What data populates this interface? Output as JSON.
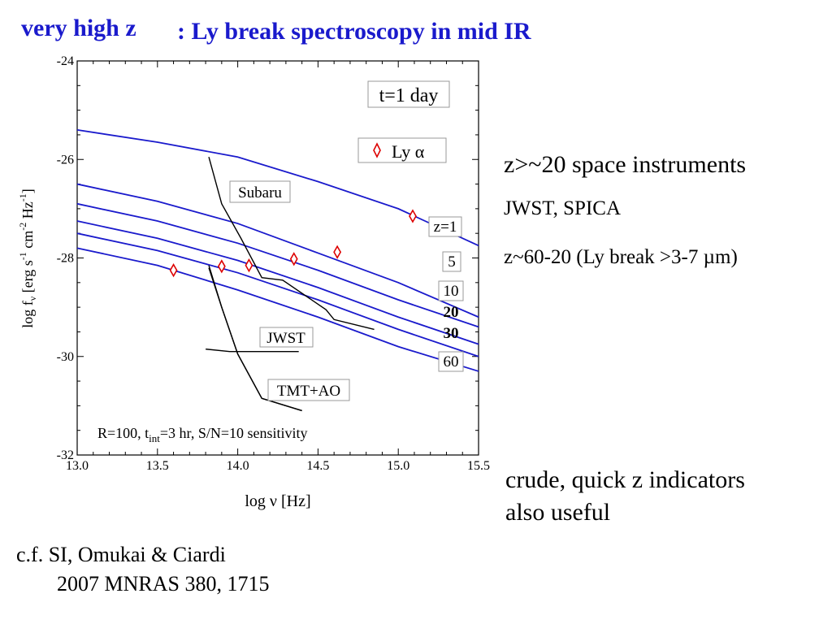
{
  "slide": {
    "title_part1": "very high z",
    "title_part2": ": Ly break spectroscopy in mid IR",
    "bullet1": "z>~20 space instruments",
    "bullet2": "JWST, SPICA",
    "bullet3": "z~60-20 (Ly break >3-7 µm)",
    "note_line1": "crude, quick z indicators",
    "note_line2": "also useful",
    "ref_line1": "c.f. SI, Omukai & Ciardi",
    "ref_line2": "2007 MNRAS 380, 1715",
    "colors": {
      "title": "#1a1acc",
      "curves": "#1a1acc",
      "marker": "#dd0000"
    }
  },
  "chart_data": {
    "type": "line",
    "xlabel": "log ν [Hz]",
    "ylabel": "log fν [erg s⁻¹ cm⁻² Hz⁻¹]",
    "xlim": [
      13.0,
      15.5
    ],
    "ylim": [
      -32,
      -24
    ],
    "x_ticks": [
      "13.0",
      "13.5",
      "14.0",
      "14.5",
      "15.0",
      "15.5"
    ],
    "y_ticks": [
      "-24",
      "-26",
      "-28",
      "-30",
      "-32"
    ],
    "time_label": "t=1 day",
    "legend": {
      "label": "Ly α",
      "position": "top-right"
    },
    "footnote": "R=100, tint=3 hr, S/N=10 sensitivity",
    "series": [
      {
        "name": "z=1",
        "x": [
          13.0,
          13.5,
          14.0,
          14.5,
          15.0,
          15.5
        ],
        "y": [
          -25.4,
          -25.65,
          -25.95,
          -26.45,
          -27.0,
          -27.75
        ],
        "lyalpha": [
          15.09,
          -27.15
        ]
      },
      {
        "name": "5",
        "x": [
          13.0,
          13.5,
          14.0,
          14.5,
          15.0,
          15.5
        ],
        "y": [
          -26.5,
          -26.85,
          -27.3,
          -27.9,
          -28.5,
          -29.2
        ],
        "lyalpha": [
          14.62,
          -27.88
        ]
      },
      {
        "name": "10",
        "x": [
          13.0,
          13.5,
          14.0,
          14.5,
          15.0,
          15.5
        ],
        "y": [
          -26.9,
          -27.25,
          -27.7,
          -28.25,
          -28.85,
          -29.4
        ],
        "lyalpha": [
          14.35,
          -28.02
        ]
      },
      {
        "name": "20",
        "x": [
          13.0,
          13.5,
          14.0,
          14.5,
          15.0,
          15.5
        ],
        "y": [
          -27.25,
          -27.6,
          -28.05,
          -28.6,
          -29.2,
          -29.75
        ],
        "lyalpha": [
          14.07,
          -28.15
        ]
      },
      {
        "name": "30",
        "x": [
          13.0,
          13.5,
          14.0,
          14.5,
          15.0,
          15.5
        ],
        "y": [
          -27.5,
          -27.85,
          -28.3,
          -28.85,
          -29.45,
          -30.0
        ],
        "lyalpha": [
          13.9,
          -28.17
        ]
      },
      {
        "name": "60",
        "x": [
          13.0,
          13.5,
          14.0,
          14.5,
          15.0,
          15.5
        ],
        "y": [
          -27.8,
          -28.15,
          -28.65,
          -29.2,
          -29.8,
          -30.3
        ],
        "lyalpha": [
          13.6,
          -28.25
        ]
      }
    ],
    "instruments": [
      {
        "name": "Subaru",
        "x": [
          13.82,
          13.9,
          14.02,
          14.15,
          14.28,
          14.55,
          14.6,
          14.85
        ],
        "y": [
          -25.95,
          -26.9,
          -27.6,
          -28.4,
          -28.45,
          -29.05,
          -29.25,
          -29.45
        ]
      },
      {
        "name": "JWST",
        "x": [
          13.82,
          13.9,
          14.0,
          14.15,
          14.4
        ],
        "y": [
          -28.2,
          -29.0,
          -29.95,
          -30.85,
          -31.1
        ]
      },
      {
        "name": "JWST-horizontal",
        "x": [
          13.8,
          13.95,
          14.15,
          14.38
        ],
        "y": [
          -29.85,
          -29.9,
          -29.9,
          -29.9
        ]
      },
      {
        "name": "TMT+AO",
        "x": [],
        "y": []
      }
    ]
  }
}
